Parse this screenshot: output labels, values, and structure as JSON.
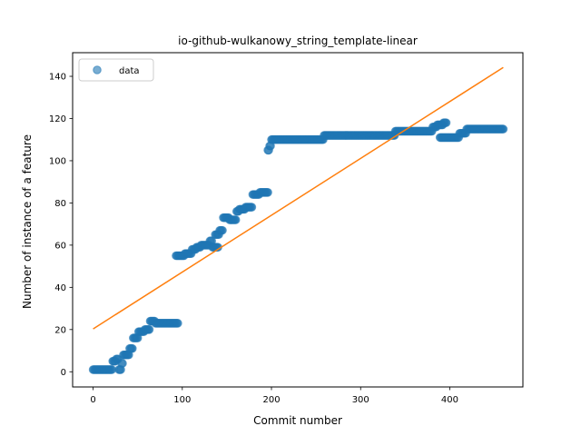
{
  "chart_data": {
    "type": "scatter",
    "title": "io-github-wulkanowy_string_template-linear",
    "xlabel": "Commit number",
    "ylabel": "Number of instance of a feature",
    "xlim": [
      -23,
      482
    ],
    "ylim": [
      -7.2,
      151.2
    ],
    "xticks": [
      0,
      100,
      200,
      300,
      400
    ],
    "yticks": [
      0,
      20,
      40,
      60,
      80,
      100,
      120,
      140
    ],
    "grid": false,
    "legend": {
      "placement": "top-left",
      "entries": [
        "data"
      ]
    },
    "colors": {
      "data": "#1f77b4",
      "fit": "#ff7f0e"
    },
    "series": [
      {
        "name": "data",
        "kind": "scatter",
        "steps": [
          [
            0,
            21,
            1
          ],
          [
            22,
            25,
            5
          ],
          [
            26,
            28,
            6
          ],
          [
            29,
            31,
            1
          ],
          [
            32,
            33,
            4
          ],
          [
            34,
            40,
            8
          ],
          [
            41,
            44,
            11
          ],
          [
            45,
            50,
            16
          ],
          [
            51,
            57,
            19
          ],
          [
            58,
            63,
            20
          ],
          [
            64,
            69,
            24
          ],
          [
            70,
            95,
            23
          ],
          [
            93,
            102,
            55
          ],
          [
            103,
            110,
            56
          ],
          [
            111,
            115,
            58
          ],
          [
            116,
            120,
            59
          ],
          [
            121,
            130,
            60
          ],
          [
            131,
            133,
            62
          ],
          [
            134,
            140,
            59
          ],
          [
            137,
            141,
            65
          ],
          [
            142,
            145,
            67
          ],
          [
            146,
            152,
            73
          ],
          [
            153,
            160,
            72
          ],
          [
            161,
            163,
            76
          ],
          [
            164,
            170,
            77
          ],
          [
            171,
            178,
            78
          ],
          [
            179,
            186,
            84
          ],
          [
            187,
            196,
            85
          ],
          [
            196,
            197,
            105
          ],
          [
            198,
            199,
            107
          ],
          [
            200,
            258,
            110
          ],
          [
            259,
            338,
            112
          ],
          [
            339,
            380,
            114
          ],
          [
            381,
            385,
            116
          ],
          [
            386,
            392,
            117
          ],
          [
            393,
            396,
            118
          ],
          [
            389,
            410,
            111
          ],
          [
            411,
            418,
            113
          ],
          [
            419,
            460,
            115
          ]
        ]
      },
      {
        "name": "",
        "kind": "line",
        "x": [
          0,
          460
        ],
        "y": [
          20.3,
          144.2
        ]
      }
    ]
  }
}
